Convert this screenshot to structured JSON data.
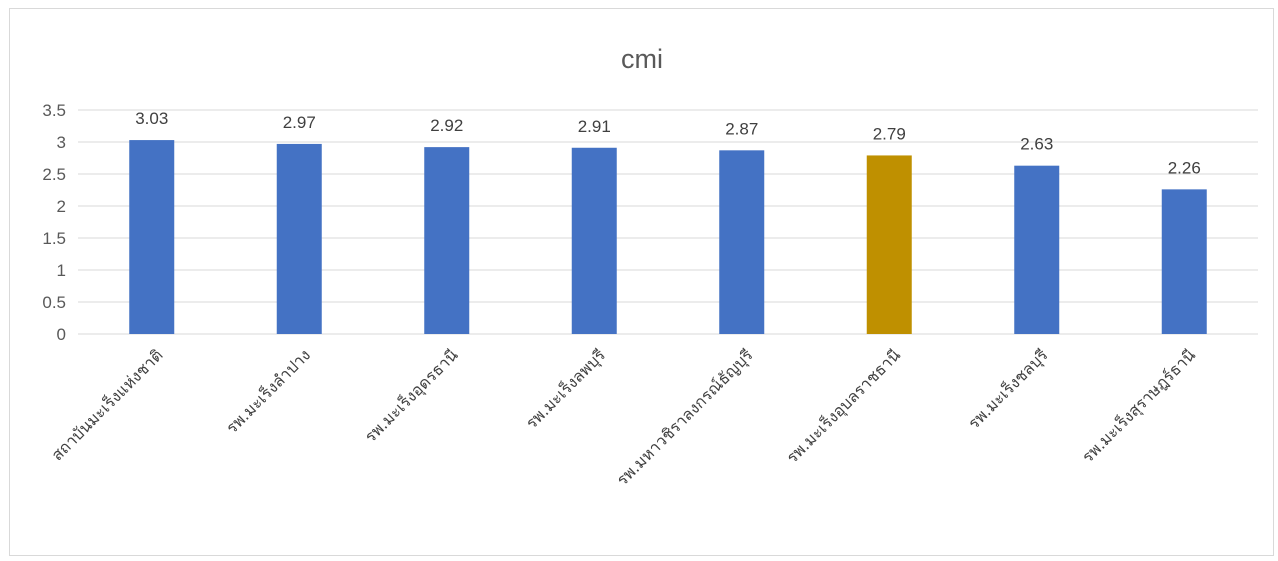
{
  "chart_data": {
    "type": "bar",
    "title": "cmi",
    "xlabel": "",
    "ylabel": "",
    "ylim": [
      0,
      3.5
    ],
    "ytick_step": 0.5,
    "ytick_labels": [
      "0",
      "0.5",
      "1",
      "1.5",
      "2",
      "2.5",
      "3",
      "3.5"
    ],
    "grid": true,
    "legend": "none",
    "categories": [
      "สถาบันมะเร็งแห่งชาติ",
      "รพ.มะเร็งลำปาง",
      "รพ.มะเร็งอุดรธานี",
      "รพ.มะเร็งลพบุรี",
      "รพ.มหาวชิราลงกรณ์ธัญบุรี",
      "รพ.มะเร็งอุบลราชธานี",
      "รพ.มะเร็งชลบุรี",
      "รพ.มะเร็งสุราษฎร์ธานี"
    ],
    "values": [
      3.03,
      2.97,
      2.92,
      2.91,
      2.87,
      2.79,
      2.63,
      2.26
    ],
    "value_labels": [
      "3.03",
      "2.97",
      "2.92",
      "2.91",
      "2.87",
      "2.79",
      "2.63",
      "2.26"
    ],
    "colors": {
      "default_bar": "#4472c4",
      "highlight_bar": "#bf9000",
      "highlight_category": "รพ.มะเร็งอุบลราชธานี"
    }
  }
}
